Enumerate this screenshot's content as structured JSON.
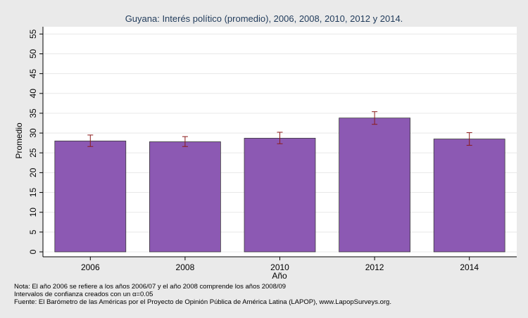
{
  "chart_data": {
    "type": "bar",
    "title": "Guyana: Interés político (promedio), 2006, 2008, 2010, 2012 y 2014.",
    "xlabel": "Año",
    "ylabel": "Promedio",
    "categories": [
      "2006",
      "2008",
      "2010",
      "2012",
      "2014"
    ],
    "values": [
      28.0,
      27.8,
      28.7,
      33.8,
      28.5
    ],
    "ci_low": [
      26.6,
      26.6,
      27.3,
      32.2,
      26.9
    ],
    "ci_high": [
      29.5,
      29.1,
      30.2,
      35.4,
      30.1
    ],
    "ylim": [
      0,
      55
    ],
    "yticks": [
      0,
      5,
      10,
      15,
      20,
      25,
      30,
      35,
      40,
      45,
      50,
      55
    ],
    "grid": true,
    "bar_color": "#8c59b3",
    "errorbar_color": "#8b1a1a"
  },
  "notes": {
    "line1": "Nota: El año 2006 se refiere a los años 2006/07 y el año 2008 comprende los años 2008/09",
    "line2": "Intervalos de confianza creados con un α=0.05",
    "line3": "Fuente: El Barómetro de las Américas por el Proyecto de Opinión Pública de América Latina (LAPOP), www.LapopSurveys.org."
  }
}
